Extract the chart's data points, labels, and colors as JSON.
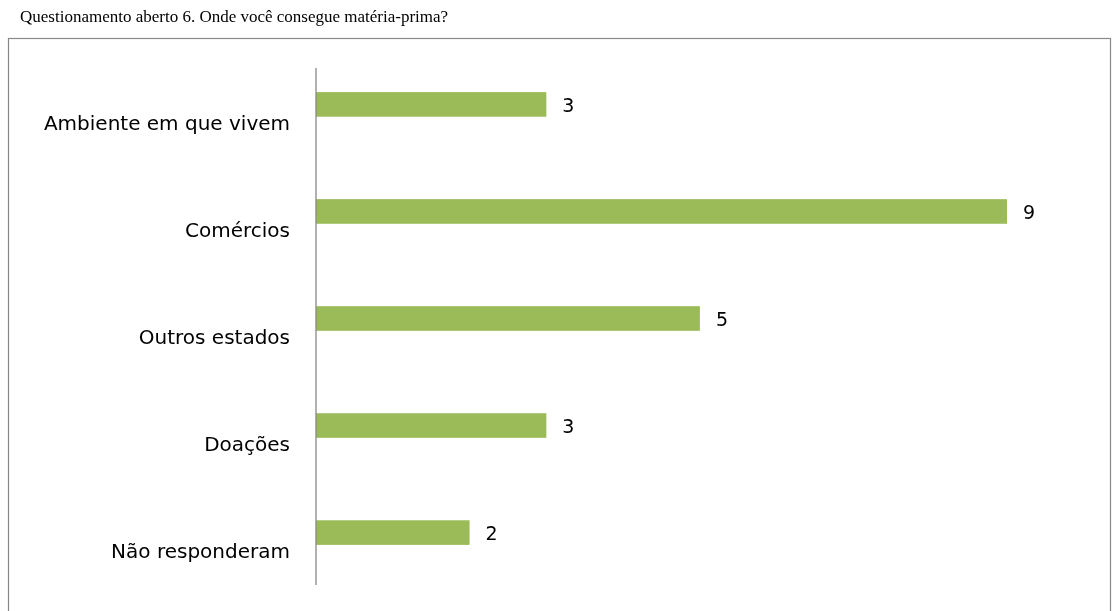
{
  "chart_data": {
    "type": "bar",
    "orientation": "horizontal",
    "title": "Questionamento aberto 6. Onde você consegue matéria-prima?",
    "categories": [
      "Ambiente em que vivem",
      "Comércios",
      "Outros estados",
      "Doações",
      "Não responderam"
    ],
    "values": [
      3,
      9,
      5,
      3,
      2
    ],
    "color": "#9bbb59",
    "data_labels": true
  }
}
